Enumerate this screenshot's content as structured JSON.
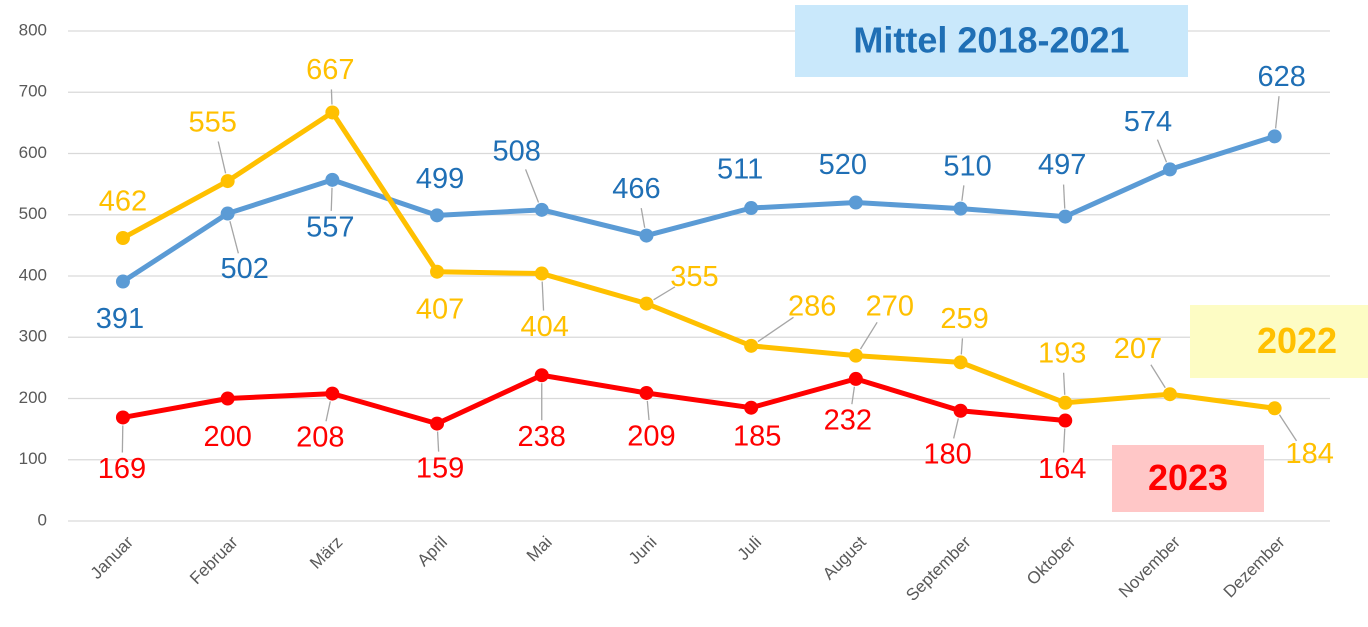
{
  "chart_data": {
    "type": "line",
    "categories": [
      "Januar",
      "Februar",
      "März",
      "April",
      "Mai",
      "Juni",
      "Juli",
      "August",
      "September",
      "Oktober",
      "November",
      "Dezember"
    ],
    "series": [
      {
        "name": "Mittel 2018-2021",
        "color": "#5b9bd5",
        "values": [
          391,
          502,
          557,
          499,
          508,
          466,
          511,
          520,
          510,
          497,
          574,
          628
        ]
      },
      {
        "name": "2022",
        "color": "#ffc000",
        "values": [
          462,
          555,
          667,
          407,
          404,
          355,
          286,
          270,
          259,
          193,
          207,
          184
        ]
      },
      {
        "name": "2023",
        "color": "#ff0000",
        "values": [
          169,
          200,
          208,
          159,
          238,
          209,
          185,
          232,
          180,
          164,
          null,
          null
        ]
      }
    ],
    "ylim": [
      0,
      800
    ],
    "yticks": [
      0,
      100,
      200,
      300,
      400,
      500,
      600,
      700,
      800
    ],
    "grid": true
  }
}
